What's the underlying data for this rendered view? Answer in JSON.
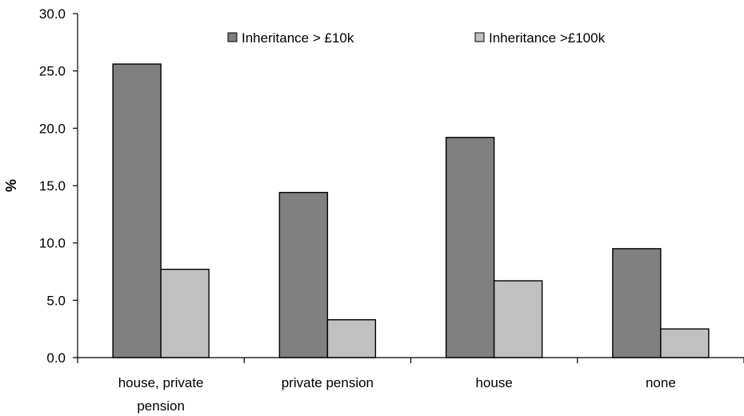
{
  "chart_data": {
    "type": "bar",
    "title": "",
    "xlabel": "",
    "ylabel": "%",
    "ylim": [
      0,
      30
    ],
    "ytick_step": 5,
    "ytick_labels": [
      "0.0",
      "5.0",
      "10.0",
      "15.0",
      "20.0",
      "25.0",
      "30.0"
    ],
    "grid": false,
    "legend_position": "top-right",
    "categories": [
      [
        "house, private",
        "pension"
      ],
      [
        "private pension"
      ],
      [
        "house"
      ],
      [
        "none"
      ]
    ],
    "series": [
      {
        "name": "Inheritance > £10k",
        "color": "#808080",
        "values": [
          25.6,
          14.4,
          19.2,
          9.5
        ]
      },
      {
        "name": "Inheritance >£100k",
        "color": "#c0c0c0",
        "values": [
          7.7,
          3.3,
          6.7,
          2.5
        ]
      }
    ]
  }
}
